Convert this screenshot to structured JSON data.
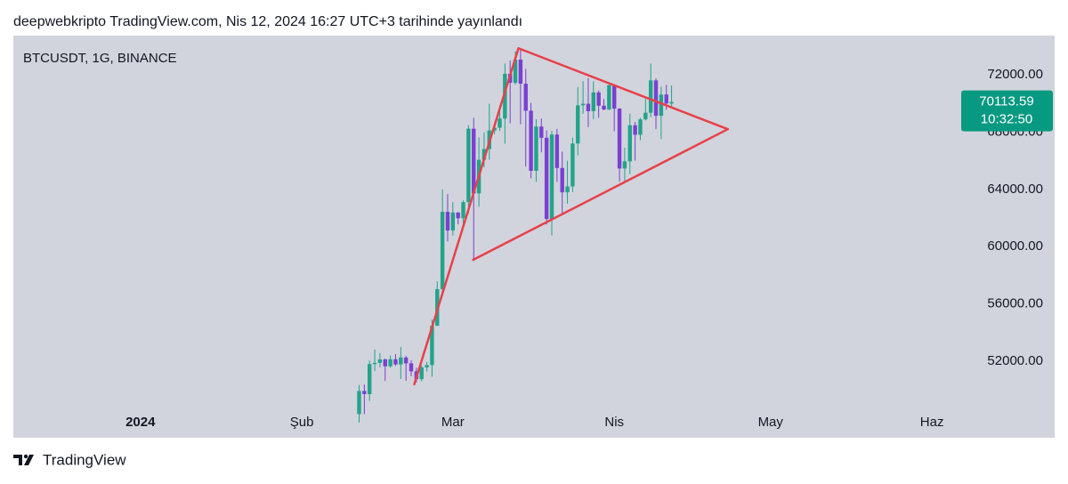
{
  "header": "deepwebkripto TradingView.com, Nis 12, 2024 16:27 UTC+3 tarihinde yayınlandı",
  "footer": "TradingView",
  "chart_data": {
    "type": "candlestick",
    "symbol": "BTCUSDT, 1G, BINANCE",
    "up_color": "#22a38a",
    "down_color": "#7b3fd1",
    "x": [
      42,
      43,
      44,
      45,
      46,
      47,
      48,
      49,
      50,
      51,
      52,
      53,
      54,
      55,
      56,
      57,
      58,
      59,
      60,
      61,
      62,
      63,
      64,
      65,
      66,
      67,
      68,
      69,
      70,
      71,
      72,
      73,
      74,
      75,
      76,
      77,
      78,
      79,
      80,
      81,
      82,
      83,
      84,
      85,
      86,
      87,
      88,
      89,
      90,
      91,
      92,
      93,
      94,
      95,
      96,
      97,
      98,
      99,
      100,
      101,
      102
    ],
    "open": [
      48300,
      49917,
      49699,
      51795,
      51880,
      52124,
      51642,
      52137,
      51774,
      52258,
      51849,
      51288,
      50744,
      51568,
      51729,
      54476,
      57037,
      62432,
      61130,
      62387,
      61987,
      63113,
      68245,
      63724,
      66074,
      66823,
      68124,
      68313,
      68955,
      72078,
      71452,
      73072,
      71388,
      69499,
      65300,
      68393,
      67609,
      61937,
      67840,
      65501,
      63796,
      64209,
      67211,
      69880,
      69988,
      69469,
      70780,
      69850,
      69582,
      71280,
      69649,
      65463,
      65963,
      68488,
      67820,
      68896,
      69360,
      71620,
      69146,
      70631,
      70006
    ],
    "high": [
      50334,
      50368,
      52043,
      52816,
      52572,
      52191,
      52400,
      52488,
      52985,
      52366,
      52065,
      51548,
      51698,
      51950,
      54910,
      57588,
      64000,
      63676,
      63114,
      62433,
      63231,
      68499,
      69000,
      67637,
      67985,
      69990,
      68541,
      69887,
      72800,
      73000,
      73650,
      73777,
      72419,
      70043,
      68904,
      68957,
      68124,
      68100,
      68240,
      66650,
      65999,
      67622,
      71150,
      71561,
      71769,
      71552,
      70916,
      70321,
      71366,
      71288,
      69674,
      66914,
      69291,
      68725,
      69000,
      70326,
      72797,
      71758,
      71172,
      71305,
      71256
    ],
    "low": [
      47710,
      48300,
      49225,
      51314,
      51566,
      50625,
      51530,
      51677,
      50760,
      50625,
      50940,
      50521,
      50586,
      51281,
      50901,
      54450,
      56691,
      60364,
      60777,
      61561,
      61321,
      62300,
      59005,
      62787,
      65551,
      66082,
      67861,
      68094,
      67194,
      68620,
      71333,
      68555,
      65600,
      64780,
      64533,
      66594,
      61555,
      60775,
      64529,
      62260,
      63000,
      63825,
      66385,
      69280,
      68359,
      68903,
      69009,
      69540,
      69562,
      68062,
      64550,
      64493,
      65064,
      66011,
      67447,
      68825,
      69043,
      68210,
      67518,
      69567,
      69800
    ],
    "close": [
      49917,
      49699,
      51795,
      51880,
      52124,
      51642,
      52137,
      51774,
      52258,
      51849,
      51288,
      50744,
      51568,
      51729,
      54476,
      57037,
      62432,
      61130,
      62387,
      61987,
      63113,
      68245,
      63724,
      66074,
      66823,
      68124,
      68313,
      68955,
      72078,
      71452,
      73072,
      71388,
      69499,
      65300,
      68393,
      67609,
      61937,
      67840,
      65501,
      63796,
      64209,
      67211,
      69880,
      69988,
      69469,
      70780,
      69850,
      69582,
      71280,
      69649,
      65463,
      65963,
      68488,
      67820,
      68896,
      69360,
      71620,
      69146,
      70631,
      70006,
      70113.59
    ],
    "xlim": [
      -24.4,
      154.2
    ],
    "xticks": [
      {
        "value": 0,
        "label": "2024"
      },
      {
        "value": 31,
        "label": "Şub"
      },
      {
        "value": 60,
        "label": "Mar"
      },
      {
        "value": 91,
        "label": "Nis"
      },
      {
        "value": 121,
        "label": "May"
      },
      {
        "value": 152,
        "label": "Haz"
      }
    ],
    "ylim": [
      46650,
      74750
    ],
    "yticks": [
      {
        "value": 52000,
        "label": "52000.00"
      },
      {
        "value": 56000,
        "label": "56000.00"
      },
      {
        "value": 60000,
        "label": "60000.00"
      },
      {
        "value": 64000,
        "label": "64000.00"
      },
      {
        "value": 68000,
        "label": "68000.00"
      },
      {
        "value": 72000,
        "label": "72000.00"
      }
    ],
    "last_price": {
      "value": 70113.59,
      "label": "70113.59"
    },
    "countdown": "10:32:50",
    "price_label_color": "#089981",
    "trendline_color": "#e8404a",
    "trendlines": [
      {
        "x": [
          52.6,
          72.6
        ],
        "y": [
          50385,
          73863
        ]
      },
      {
        "x": [
          72.6,
          112.8
        ],
        "y": [
          73863,
          68211
        ]
      },
      {
        "x": [
          63.9,
          112.8
        ],
        "y": [
          59081,
          68211
        ]
      }
    ]
  }
}
